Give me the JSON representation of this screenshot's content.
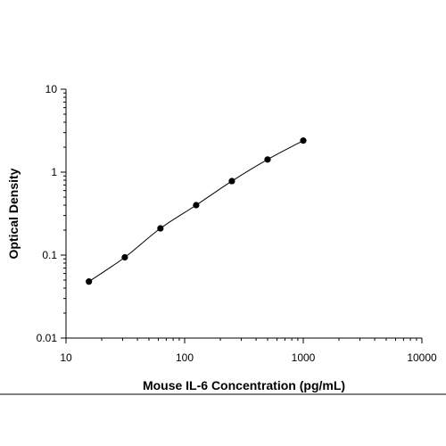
{
  "chart_data": {
    "type": "scatter",
    "title": "",
    "xlabel": "Mouse IL-6 Concentration (pg/mL)",
    "ylabel": "Optical Density",
    "x_scale": "log",
    "y_scale": "log",
    "xlim": [
      10,
      10000
    ],
    "ylim": [
      0.01,
      10
    ],
    "x_ticks": [
      10,
      100,
      1000,
      10000
    ],
    "x_tick_labels": [
      "10",
      "100",
      "1000",
      "10000"
    ],
    "y_ticks": [
      0.01,
      0.1,
      1,
      10
    ],
    "y_tick_labels": [
      "0.01",
      "0.1",
      "1",
      "10"
    ],
    "grid": false,
    "legend": "none",
    "marker_color": "#000000",
    "curve_color": "#000000",
    "series": [
      {
        "x": [
          15.6,
          31.3,
          62.5,
          125,
          250,
          500,
          1000
        ],
        "y": [
          0.048,
          0.094,
          0.21,
          0.4,
          0.78,
          1.42,
          2.4
        ]
      }
    ]
  }
}
